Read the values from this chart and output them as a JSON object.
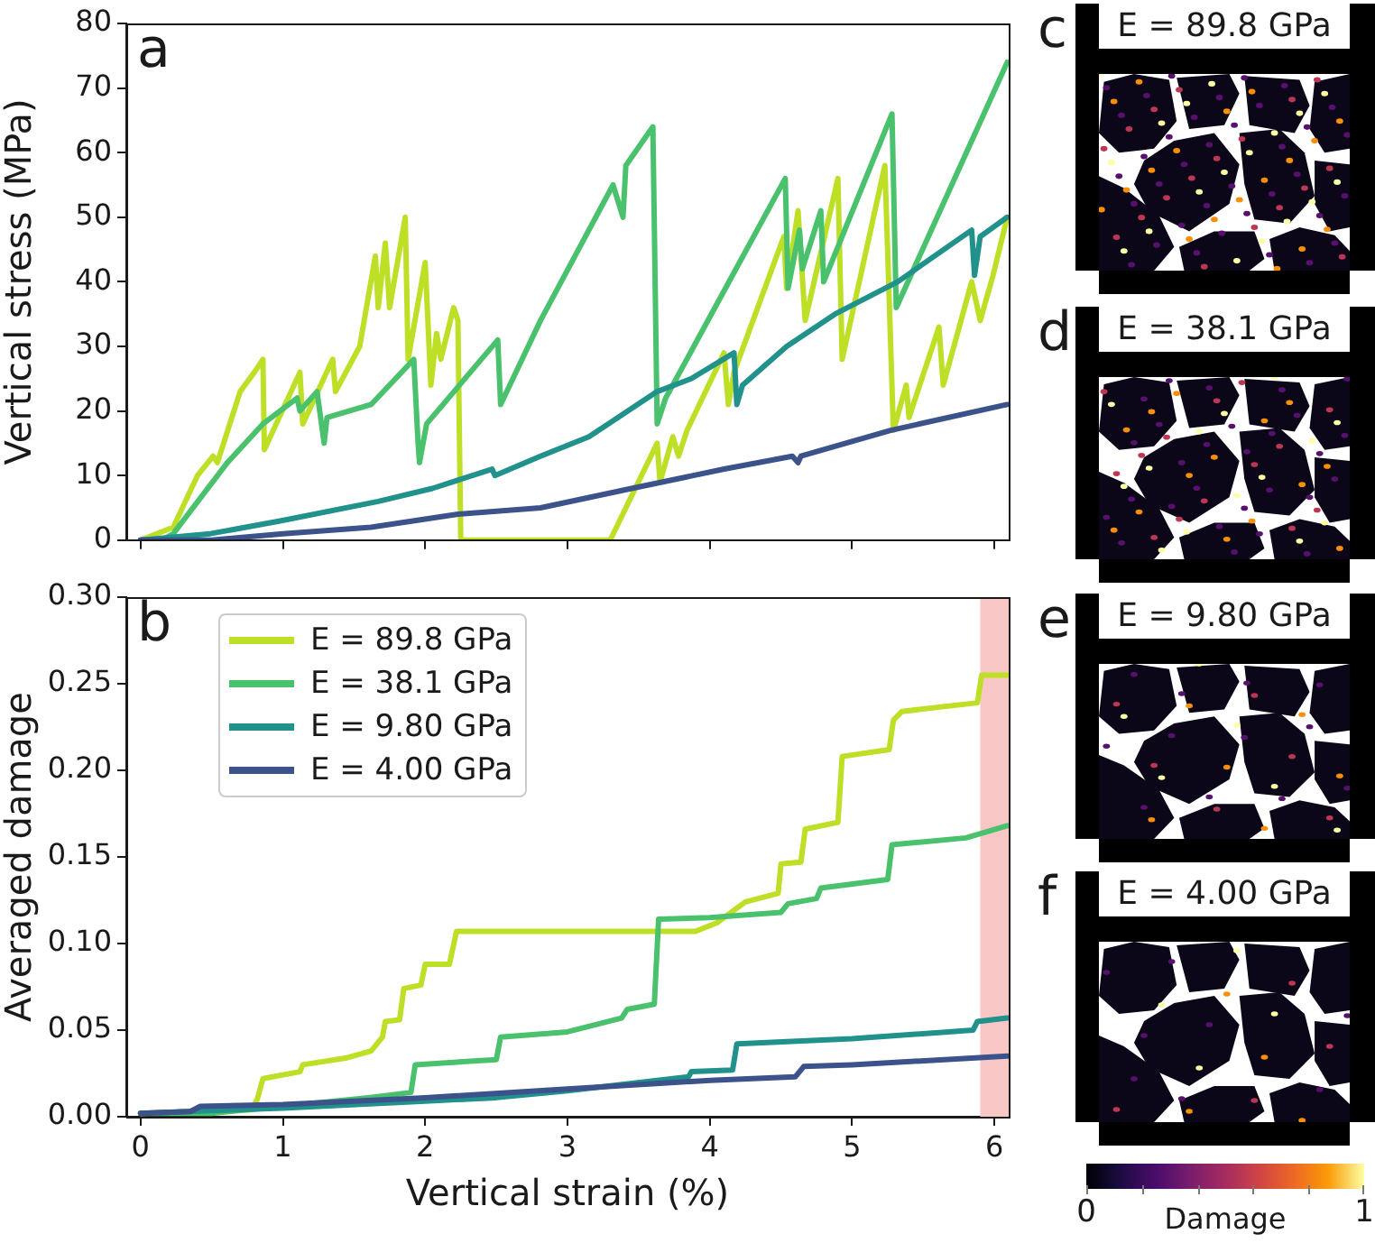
{
  "chart_data": [
    {
      "type": "line",
      "ylabel": "Vertical stress (MPa)",
      "annotations": [
        "a"
      ],
      "xlim": [
        -0.1,
        6.1
      ],
      "xticks": [
        0,
        1,
        2,
        3,
        4,
        5,
        6
      ],
      "ylim": [
        0,
        80
      ],
      "yticks": [
        0,
        10,
        20,
        30,
        40,
        50,
        60,
        70,
        80
      ],
      "tick_labels": "y",
      "series": [
        {
          "color": "#bddf26",
          "x": [
            0,
            0.23,
            0.4,
            0.51,
            0.54,
            0.7,
            0.8,
            0.86,
            0.87,
            1.12,
            1.14,
            1.35,
            1.37,
            1.54,
            1.65,
            1.67,
            1.72,
            1.75,
            1.86,
            1.88,
            2.0,
            2.04,
            2.08,
            2.11,
            2.2,
            2.23,
            2.25,
            2.3,
            3.3,
            3.63,
            3.65,
            3.74,
            3.78,
            3.84,
            4.1,
            4.13,
            4.17,
            4.52,
            4.54,
            4.62,
            4.67,
            4.9,
            4.93,
            5.23,
            5.29,
            5.38,
            5.4,
            5.61,
            5.64,
            5.84,
            5.9,
            5.99,
            6.09
          ],
          "values": [
            0,
            2,
            10,
            13,
            12,
            23,
            26,
            28,
            14,
            26,
            18,
            28,
            23,
            30,
            44,
            36,
            46,
            36,
            50,
            28,
            43,
            24,
            32,
            28,
            36,
            34,
            0,
            0,
            0,
            15,
            9,
            16,
            13,
            17,
            29,
            21,
            26,
            47,
            39,
            51,
            34,
            56,
            28,
            58,
            17,
            24,
            19,
            33,
            24,
            40,
            34,
            41,
            50
          ]
        },
        {
          "color": "#4ac16d",
          "x": [
            0,
            0.15,
            0.23,
            0.61,
            0.86,
            1.1,
            1.12,
            1.24,
            1.29,
            1.31,
            1.62,
            1.92,
            1.95,
            1.96,
            2.01,
            2.51,
            2.53,
            2.81,
            3.32,
            3.39,
            3.41,
            3.6,
            3.63,
            3.69,
            4.53,
            4.55,
            4.63,
            4.65,
            4.78,
            4.8,
            5.28,
            5.31,
            6.09
          ],
          "values": [
            0,
            0,
            1,
            12,
            18,
            22,
            20,
            23,
            15,
            19,
            21,
            28,
            15,
            12,
            18,
            31,
            21,
            34,
            55,
            50,
            58,
            64,
            18,
            22,
            56,
            39,
            48,
            42,
            51,
            40,
            66,
            36,
            74
          ]
        },
        {
          "color": "#21918c",
          "x": [
            0,
            0.49,
            0.99,
            1.67,
            2.05,
            2.47,
            2.49,
            2.81,
            3.15,
            3.63,
            3.87,
            4.17,
            4.19,
            4.23,
            4.54,
            4.88,
            5.32,
            5.84,
            5.86,
            5.9,
            6.09
          ],
          "values": [
            0,
            1,
            3,
            6,
            8,
            11,
            10,
            13,
            16,
            23,
            25,
            29,
            21,
            24,
            30,
            35,
            40,
            48,
            41,
            47,
            50
          ]
        },
        {
          "color": "#3b528b",
          "x": [
            0,
            0.5,
            1.0,
            1.62,
            2.22,
            2.81,
            3.45,
            4.1,
            4.58,
            4.62,
            4.64,
            5.27,
            6.09
          ],
          "values": [
            0,
            0,
            1,
            2,
            4,
            5,
            8,
            11,
            13,
            12,
            13,
            17,
            21
          ]
        }
      ]
    },
    {
      "type": "line",
      "xlabel": "Vertical strain (%)",
      "ylabel": "Averaged damage",
      "annotations": [
        "b"
      ],
      "xlim": [
        -0.1,
        6.1
      ],
      "xticks": [
        0,
        1,
        2,
        3,
        4,
        5,
        6
      ],
      "ylim": [
        0,
        0.3
      ],
      "yticks": [
        {
          "value": 0,
          "label": "0.00"
        },
        {
          "value": 0.05,
          "label": "0.05"
        },
        {
          "value": 0.1,
          "label": "0.10"
        },
        {
          "value": 0.15,
          "label": "0.15"
        },
        {
          "value": 0.2,
          "label": "0.20"
        },
        {
          "value": 0.25,
          "label": "0.25"
        },
        {
          "value": 0.3,
          "label": "0.30"
        }
      ],
      "legend": "top left",
      "bands": [
        {
          "axis": "x",
          "from": 5.9,
          "to": 6.1,
          "color": "#f9c6c6"
        }
      ],
      "series": [
        {
          "name": "E = 89.8 GPa",
          "color": "#bddf26",
          "x": [
            0,
            0.78,
            0.82,
            0.86,
            1.12,
            1.14,
            1.45,
            1.62,
            1.7,
            1.72,
            1.82,
            1.85,
            1.97,
            2.0,
            2.17,
            2.22,
            3.9,
            4.05,
            4.25,
            4.48,
            4.5,
            4.64,
            4.67,
            4.9,
            4.93,
            5.26,
            5.29,
            5.35,
            5.88,
            5.91,
            6.09
          ],
          "values": [
            0.002,
            0.004,
            0.01,
            0.022,
            0.026,
            0.03,
            0.034,
            0.038,
            0.046,
            0.055,
            0.056,
            0.074,
            0.076,
            0.088,
            0.088,
            0.107,
            0.107,
            0.112,
            0.124,
            0.129,
            0.146,
            0.147,
            0.166,
            0.17,
            0.208,
            0.212,
            0.229,
            0.234,
            0.239,
            0.255,
            0.255
          ]
        },
        {
          "name": "E = 38.1 GPa",
          "color": "#4ac16d",
          "x": [
            0,
            0.5,
            1.0,
            1.6,
            1.9,
            1.93,
            2.5,
            2.53,
            3.0,
            3.38,
            3.42,
            3.61,
            3.64,
            4.0,
            4.5,
            4.55,
            4.75,
            4.78,
            5.25,
            5.28,
            5.8,
            6.09
          ],
          "values": [
            0.002,
            0.002,
            0.006,
            0.011,
            0.014,
            0.03,
            0.033,
            0.046,
            0.049,
            0.057,
            0.062,
            0.065,
            0.114,
            0.115,
            0.118,
            0.123,
            0.126,
            0.132,
            0.137,
            0.157,
            0.161,
            0.168
          ]
        },
        {
          "name": "E = 9.80 GPa",
          "color": "#21918c",
          "x": [
            0,
            1,
            2,
            2.5,
            3.0,
            3.85,
            3.87,
            4.16,
            4.19,
            5.0,
            5.85,
            5.88,
            6.09
          ],
          "values": [
            0.002,
            0.005,
            0.009,
            0.011,
            0.015,
            0.023,
            0.026,
            0.027,
            0.042,
            0.045,
            0.05,
            0.055,
            0.057
          ]
        },
        {
          "name": "E = 4.00 GPa",
          "color": "#3b528b",
          "x": [
            0,
            0.35,
            0.42,
            1.0,
            2.0,
            3.0,
            4.0,
            4.6,
            4.66,
            5.0,
            6.09
          ],
          "values": [
            0.002,
            0.003,
            0.006,
            0.007,
            0.011,
            0.016,
            0.021,
            0.023,
            0.029,
            0.03,
            0.035
          ]
        }
      ]
    },
    {
      "type": "other",
      "annotations": [
        "c",
        "E = 89.8 GPa",
        "d",
        "E = 38.1 GPa",
        "e",
        "E = 9.80 GPa",
        "f",
        "E = 4.00 GPa",
        "0",
        "1"
      ],
      "clabel": "Damage"
    }
  ]
}
